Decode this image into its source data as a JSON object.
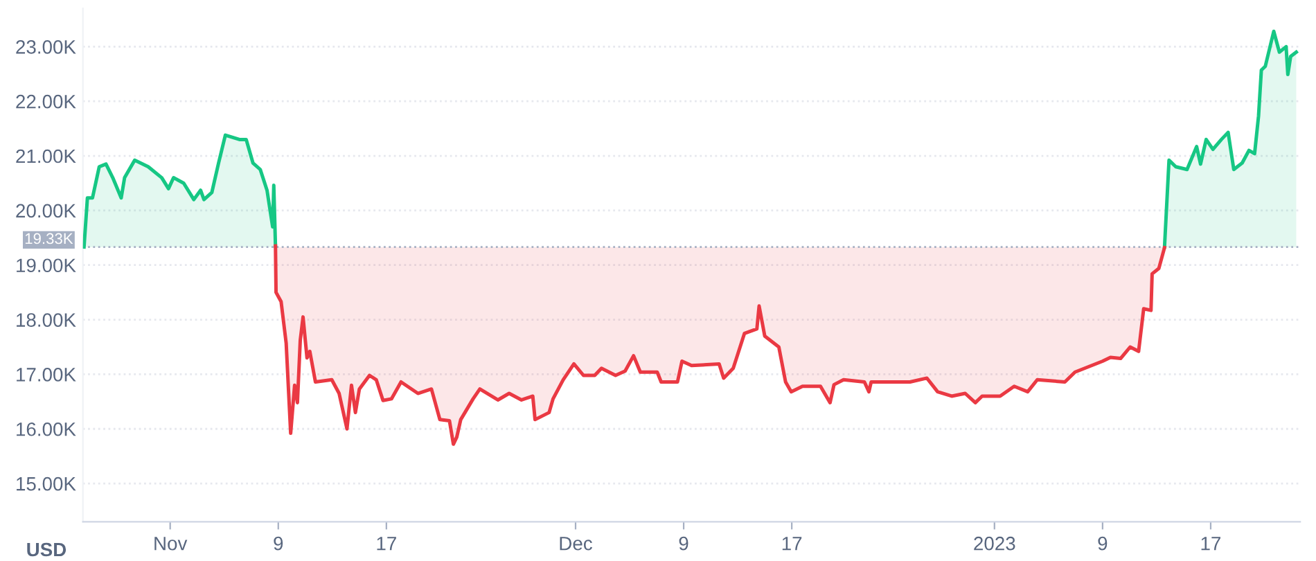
{
  "chart_data": {
    "type": "line",
    "ylabel": "USD",
    "xlim": [
      "2022-10-25T13:00",
      "2023-01-23T15:00"
    ],
    "xticks": [
      {
        "value": "2022-11-01",
        "label": "Nov"
      },
      {
        "value": "2022-11-09",
        "label": "9"
      },
      {
        "value": "2022-11-17",
        "label": "17"
      },
      {
        "value": "2022-12-01",
        "label": "Dec"
      },
      {
        "value": "2022-12-09",
        "label": "9"
      },
      {
        "value": "2022-12-17",
        "label": "17"
      },
      {
        "value": "2023-01-01",
        "label": "2023"
      },
      {
        "value": "2023-01-09",
        "label": "9"
      },
      {
        "value": "2023-01-17",
        "label": "17"
      }
    ],
    "ylim": [
      14300,
      23700
    ],
    "yticks": [
      {
        "value": 15000,
        "label": "15.00K"
      },
      {
        "value": 16000,
        "label": "16.00K"
      },
      {
        "value": 17000,
        "label": "17.00K"
      },
      {
        "value": 18000,
        "label": "18.00K"
      },
      {
        "value": 19000,
        "label": "19.00K"
      },
      {
        "value": 20000,
        "label": "20.00K"
      },
      {
        "value": 21000,
        "label": "21.00K"
      },
      {
        "value": 22000,
        "label": "22.00K"
      },
      {
        "value": 23000,
        "label": "23.00K"
      }
    ],
    "grid": "y",
    "marker": "none",
    "line_style": "solid",
    "ref_lines": [
      {
        "axis": "y",
        "value": 19330,
        "label": "19.33K",
        "color": "#a6b0c3",
        "line_style": "dotted"
      }
    ],
    "series": [
      {
        "color": "#16c784",
        "x": [
          "2022-10-25T15:00",
          "2022-10-25T21:00",
          "2022-10-26T06:00",
          "2022-10-26T18:00",
          "2022-10-27T06:00",
          "2022-10-27T18:00",
          "2022-10-28T09:00",
          "2022-10-28T15:00",
          "2022-10-29T09:00",
          "2022-10-30T09:00",
          "2022-10-31T09:00",
          "2022-10-31T21:00",
          "2022-11-01T06:00",
          "2022-11-02T00:00",
          "2022-11-02T18:00",
          "2022-11-03T06:00",
          "2022-11-03T12:00",
          "2022-11-04T02:00",
          "2022-11-04T14:00",
          "2022-11-05T02:00",
          "2022-11-06T03:00",
          "2022-11-06T15:00",
          "2022-11-07T03:00",
          "2022-11-07T16:00",
          "2022-11-08T04:00",
          "2022-11-08T14:00",
          "2022-11-08T16:00",
          "2022-11-08T19:00",
          "2023-01-01T00:00",
          "2023-01-13T14:00",
          "2023-01-13T22:00",
          "2023-01-14T10:00",
          "2023-01-15T06:00",
          "2023-01-15T23:00",
          "2023-01-16T06:00",
          "2023-01-16T16:00",
          "2023-01-17T04:00",
          "2023-01-17T19:00",
          "2023-01-18T07:00",
          "2023-01-18T17:00",
          "2023-01-19T08:00",
          "2023-01-19T20:00",
          "2023-01-20T06:00",
          "2023-01-20T13:00",
          "2023-01-20T18:00",
          "2023-01-21T01:00",
          "2023-01-21T16:00",
          "2023-01-22T02:00",
          "2023-01-22T14:00",
          "2023-01-22T17:00",
          "2023-01-22T22:00",
          "2023-01-23T08:00"
        ],
        "values": [
          19330,
          20230,
          20230,
          20800,
          20850,
          20600,
          20230,
          20600,
          20920,
          20800,
          20600,
          20400,
          20600,
          20500,
          20200,
          20370,
          20200,
          20330,
          20870,
          21380,
          21300,
          21300,
          20870,
          20750,
          20370,
          19700,
          20460,
          19350,
          null,
          19330,
          20920,
          20800,
          20750,
          21170,
          20850,
          21300,
          21120,
          21300,
          21430,
          20750,
          20870,
          21100,
          21040,
          21730,
          22570,
          22640,
          23280,
          22900,
          23000,
          22490,
          22820,
          22900
        ]
      },
      {
        "color": "#ea3943",
        "x": [
          "2022-11-08T19:00",
          "2022-11-08T20:00",
          "2022-11-09T05:00",
          "2022-11-09T14:00",
          "2022-11-09T22:00",
          "2022-11-10T05:00",
          "2022-11-10T10:00",
          "2022-11-10T15:00",
          "2022-11-10T20:00",
          "2022-11-11T03:00",
          "2022-11-11T08:00",
          "2022-11-11T18:00",
          "2022-11-12T23:00",
          "2022-11-13T12:00",
          "2022-11-14T02:00",
          "2022-11-14T10:00",
          "2022-11-14T17:00",
          "2022-11-15T00:00",
          "2022-11-15T18:00",
          "2022-11-16T06:00",
          "2022-11-16T18:00",
          "2022-11-17T09:00",
          "2022-11-18T02:00",
          "2022-11-19T08:00",
          "2022-11-20T08:00",
          "2022-11-20T23:00",
          "2022-11-21T16:00",
          "2022-11-21T23:00",
          "2022-11-22T05:00",
          "2022-11-22T12:00",
          "2022-11-23T10:00",
          "2022-11-23T22:00",
          "2022-11-25T06:00",
          "2022-11-26T02:00",
          "2022-11-27T00:00",
          "2022-11-27T20:00",
          "2022-11-28T00:00",
          "2022-11-29T01:00",
          "2022-11-29T08:00",
          "2022-11-30T02:00",
          "2022-11-30T21:00",
          "2022-12-01T14:00",
          "2022-12-02T10:00",
          "2022-12-02T22:00",
          "2022-12-03T23:00",
          "2022-12-04T16:00",
          "2022-12-05T07:00",
          "2022-12-05T19:00",
          "2022-12-07T01:00",
          "2022-12-07T08:00",
          "2022-12-08T13:00",
          "2022-12-08T21:00",
          "2022-12-09T14:00",
          "2022-12-11T15:00",
          "2022-12-11T23:00",
          "2022-12-12T16:00",
          "2022-12-13T12:00",
          "2022-12-14T10:00",
          "2022-12-14T14:00",
          "2022-12-15T00:00",
          "2022-12-16T01:00",
          "2022-12-16T13:00",
          "2022-12-16T23:00",
          "2022-12-17T19:00",
          "2022-12-19T03:00",
          "2022-12-19T20:00",
          "2022-12-20T03:00",
          "2022-12-20T20:00",
          "2022-12-22T09:00",
          "2022-12-22T17:00",
          "2022-12-22T21:00",
          "2022-12-25T18:00",
          "2022-12-27T00:00",
          "2022-12-27T19:00",
          "2022-12-28T20:00",
          "2022-12-29T20:00",
          "2022-12-30T14:00",
          "2022-12-31T02:00",
          "2023-01-01T10:00",
          "2023-01-02T11:00",
          "2023-01-03T11:00",
          "2023-01-04T04:00",
          "2023-01-06T05:00",
          "2023-01-06T23:00",
          "2023-01-09T00:00",
          "2023-01-09T14:00",
          "2023-01-10T08:00",
          "2023-01-11T01:00",
          "2023-01-11T16:00",
          "2023-01-12T01:00",
          "2023-01-12T14:00",
          "2023-01-12T16:00",
          "2023-01-13T04:00",
          "2023-01-13T14:00"
        ],
        "values": [
          19350,
          18500,
          18330,
          17570,
          15920,
          16800,
          16480,
          17620,
          18050,
          17300,
          17420,
          16860,
          16900,
          16650,
          16000,
          16800,
          16300,
          16730,
          16980,
          16900,
          16520,
          16550,
          16860,
          16650,
          16730,
          16170,
          16150,
          15720,
          15850,
          16170,
          16550,
          16730,
          16530,
          16650,
          16530,
          16600,
          16170,
          16300,
          16550,
          16900,
          17190,
          16980,
          16980,
          17110,
          16980,
          17060,
          17340,
          17040,
          17040,
          16860,
          16860,
          17240,
          17160,
          17190,
          16930,
          17110,
          17750,
          17830,
          18250,
          17700,
          17500,
          16860,
          16680,
          16780,
          16780,
          16480,
          16810,
          16900,
          16860,
          16680,
          16860,
          16860,
          16930,
          16680,
          16600,
          16650,
          16480,
          16600,
          16600,
          16780,
          16680,
          16900,
          16860,
          17040,
          17240,
          17310,
          17290,
          17500,
          17420,
          18200,
          18170,
          18840,
          18940,
          19320
        ]
      }
    ]
  }
}
